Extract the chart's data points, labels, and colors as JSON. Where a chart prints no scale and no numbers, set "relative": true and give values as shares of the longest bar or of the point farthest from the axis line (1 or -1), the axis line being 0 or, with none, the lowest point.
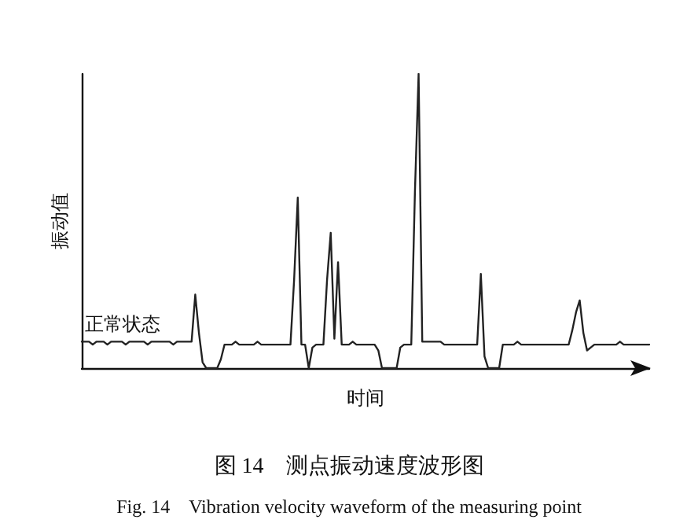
{
  "chart_data": {
    "type": "line",
    "title": "图 14　测点振动速度波形图",
    "subtitle": "Fig. 14　Vibration velocity waveform of the measuring point",
    "xlabel": "时间",
    "ylabel": "振动值",
    "annotations": [
      "正常状态"
    ],
    "relative": true,
    "marker": "none",
    "line_style": "solid",
    "categories": [
      null,
      null,
      null,
      null,
      null,
      null,
      null,
      null,
      null,
      null,
      null,
      null,
      null,
      null,
      null,
      null,
      null,
      null,
      null,
      null,
      null,
      null,
      null,
      null,
      null,
      null,
      null,
      null,
      null,
      null,
      null,
      null,
      null,
      null,
      null,
      null,
      null,
      null,
      null,
      null,
      null,
      null,
      null,
      null,
      null,
      null,
      null,
      null,
      null,
      null,
      null,
      null,
      null,
      null,
      null,
      null,
      null,
      null,
      null,
      null,
      null,
      null,
      null,
      null,
      null,
      null,
      null,
      null,
      null,
      null,
      null,
      null,
      null,
      null,
      null,
      null,
      null,
      null,
      null,
      null,
      null,
      null,
      null,
      null,
      null,
      null,
      null,
      null,
      null,
      null,
      null,
      null,
      null,
      null,
      null,
      null,
      null,
      null,
      null,
      null,
      null,
      null,
      null,
      null,
      null,
      null,
      null,
      null,
      null,
      null,
      null,
      null,
      null,
      null,
      null,
      null,
      null,
      null,
      null,
      null,
      null,
      null,
      null,
      null,
      null,
      null,
      null,
      null,
      null,
      null,
      null,
      null,
      null,
      null,
      null,
      null,
      null,
      null,
      null,
      null,
      null,
      null,
      null,
      null,
      null,
      null,
      null,
      null,
      null,
      null,
      null,
      null,
      null,
      null,
      null,
      null
    ],
    "series": [
      {
        "color": "#222222",
        "values": [
          0.09,
          0.09,
          0.09,
          0.08,
          0.09,
          0.09,
          0.09,
          0.08,
          0.09,
          0.09,
          0.09,
          0.09,
          0.08,
          0.09,
          0.09,
          0.09,
          0.09,
          0.09,
          0.08,
          0.09,
          0.09,
          0.09,
          0.09,
          0.09,
          0.09,
          0.08,
          0.09,
          0.09,
          0.09,
          0.09,
          0.09,
          0.25,
          0.12,
          0.02,
          0,
          0,
          0,
          0,
          0.03,
          0.08,
          0.08,
          0.08,
          0.09,
          0.08,
          0.08,
          0.08,
          0.08,
          0.08,
          0.09,
          0.08,
          0.08,
          0.08,
          0.08,
          0.08,
          0.08,
          0.08,
          0.08,
          0.08,
          0.3,
          0.58,
          0.08,
          0.08,
          0,
          0.07,
          0.08,
          0.08,
          0.08,
          0.3,
          0.46,
          0.1,
          0.36,
          0.08,
          0.08,
          0.08,
          0.09,
          0.08,
          0.08,
          0.08,
          0.08,
          0.08,
          0.08,
          0.06,
          0,
          0,
          0,
          0,
          0,
          0.07,
          0.08,
          0.08,
          0.08,
          0.6,
          1,
          0.09,
          0.09,
          0.09,
          0.09,
          0.09,
          0.09,
          0.08,
          0.08,
          0.08,
          0.08,
          0.08,
          0.08,
          0.08,
          0.08,
          0.08,
          0.08,
          0.32,
          0.04,
          0,
          0,
          0,
          0,
          0.08,
          0.08,
          0.08,
          0.08,
          0.09,
          0.08,
          0.08,
          0.08,
          0.08,
          0.08,
          0.08,
          0.08,
          0.08,
          0.08,
          0.08,
          0.08,
          0.08,
          0.08,
          0.08,
          0.13,
          0.19,
          0.23,
          0.12,
          0.06,
          0.07,
          0.08,
          0.08,
          0.08,
          0.08,
          0.08,
          0.08,
          0.08,
          0.09,
          0.08,
          0.08,
          0.08,
          0.08,
          0.08,
          0.08,
          0.08,
          0.08
        ]
      }
    ]
  }
}
